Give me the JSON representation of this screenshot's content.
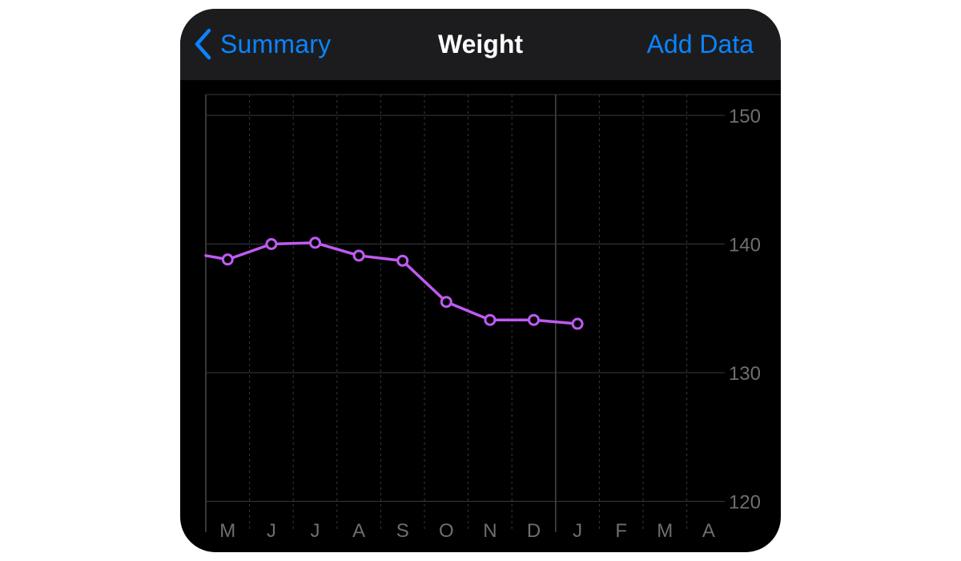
{
  "navbar": {
    "back_label": "Summary",
    "title": "Weight",
    "action_label": "Add Data"
  },
  "icons": {
    "back": "chevron-left-icon"
  },
  "colors": {
    "accent": "#0a84ff",
    "series": "#bf5af2",
    "background": "#000000",
    "navbar": "#1c1c1e"
  },
  "chart_data": {
    "type": "line",
    "title": "",
    "xlabel": "",
    "ylabel": "",
    "categories": [
      "M",
      "J",
      "J",
      "A",
      "S",
      "O",
      "N",
      "D",
      "J",
      "F",
      "M",
      "A"
    ],
    "y_ticks": [
      150,
      140,
      130,
      120
    ],
    "ylim": [
      120,
      151
    ],
    "grid": true,
    "y_axis_position": "right",
    "series": [
      {
        "values": [
          138.8,
          140.0,
          140.1,
          139.1,
          138.7,
          135.5,
          134.1,
          134.1,
          133.8,
          null,
          null,
          null
        ],
        "lead_in_value": 139.1,
        "color": "#bf5af2"
      }
    ]
  }
}
